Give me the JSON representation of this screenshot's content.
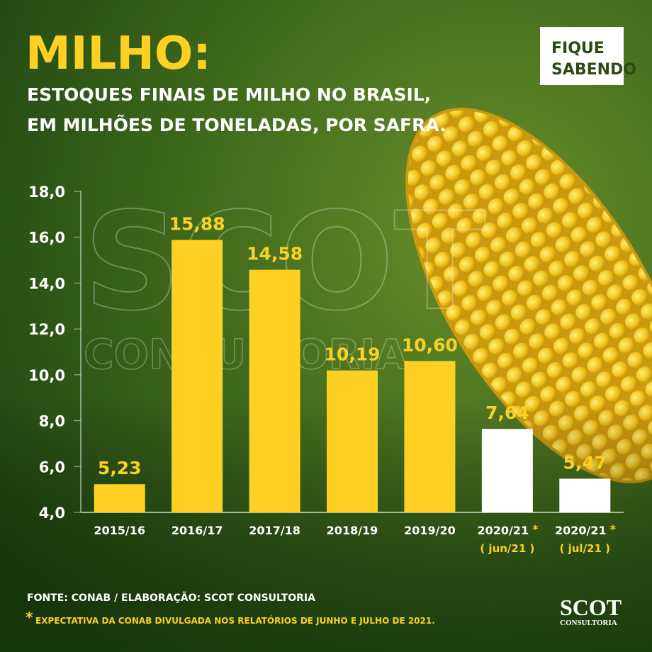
{
  "chart_data": {
    "type": "bar",
    "title": "MILHO:",
    "subtitle": [
      "ESTOQUES FINAIS DE MILHO NO BRASIL,",
      "EM MILHÕES DE TONELADAS, POR SAFRA."
    ],
    "badge": [
      "FIQUE",
      "SABENDO"
    ],
    "watermark": [
      "SCOT",
      "CONSULTORIA"
    ],
    "categories": [
      "2015/16",
      "2016/17",
      "2017/18",
      "2018/19",
      "2019/20",
      "2020/21",
      "2020/21"
    ],
    "footnote_marks": [
      null,
      null,
      null,
      null,
      null,
      "*",
      "*"
    ],
    "category_notes": [
      null,
      null,
      null,
      null,
      null,
      "( jun/21 )",
      "( jul/21 )"
    ],
    "values": [
      5.23,
      15.88,
      14.58,
      10.19,
      10.6,
      7.64,
      5.47
    ],
    "value_labels": [
      "5,23",
      "15,88",
      "14,58",
      "10,19",
      "10,60",
      "7,64",
      "5,47"
    ],
    "colors": [
      "#fdd023",
      "#fdd023",
      "#fdd023",
      "#fdd023",
      "#fdd023",
      "#ffffff",
      "#ffffff"
    ],
    "ylim": [
      4,
      18
    ],
    "yticks": [
      {
        "value": 4,
        "label": "4,0"
      },
      {
        "value": 6,
        "label": "6,0"
      },
      {
        "value": 8,
        "label": "8,0"
      },
      {
        "value": 10,
        "label": "10,0"
      },
      {
        "value": 12,
        "label": "12,0"
      },
      {
        "value": 14,
        "label": "14,0"
      },
      {
        "value": 16,
        "label": "16,0"
      },
      {
        "value": 18,
        "label": "18,0"
      }
    ],
    "source": "FONTE: CONAB / ELABORAÇÃO: SCOT CONSULTORIA",
    "footnote": {
      "mark": "*",
      "text": "EXPECTATIVA DA CONAB DIVULGADA NOS RELATÓRIOS DE JUNHO E JULHO DE 2021."
    },
    "logo": [
      "SCOT",
      "CONSULTORIA"
    ]
  }
}
